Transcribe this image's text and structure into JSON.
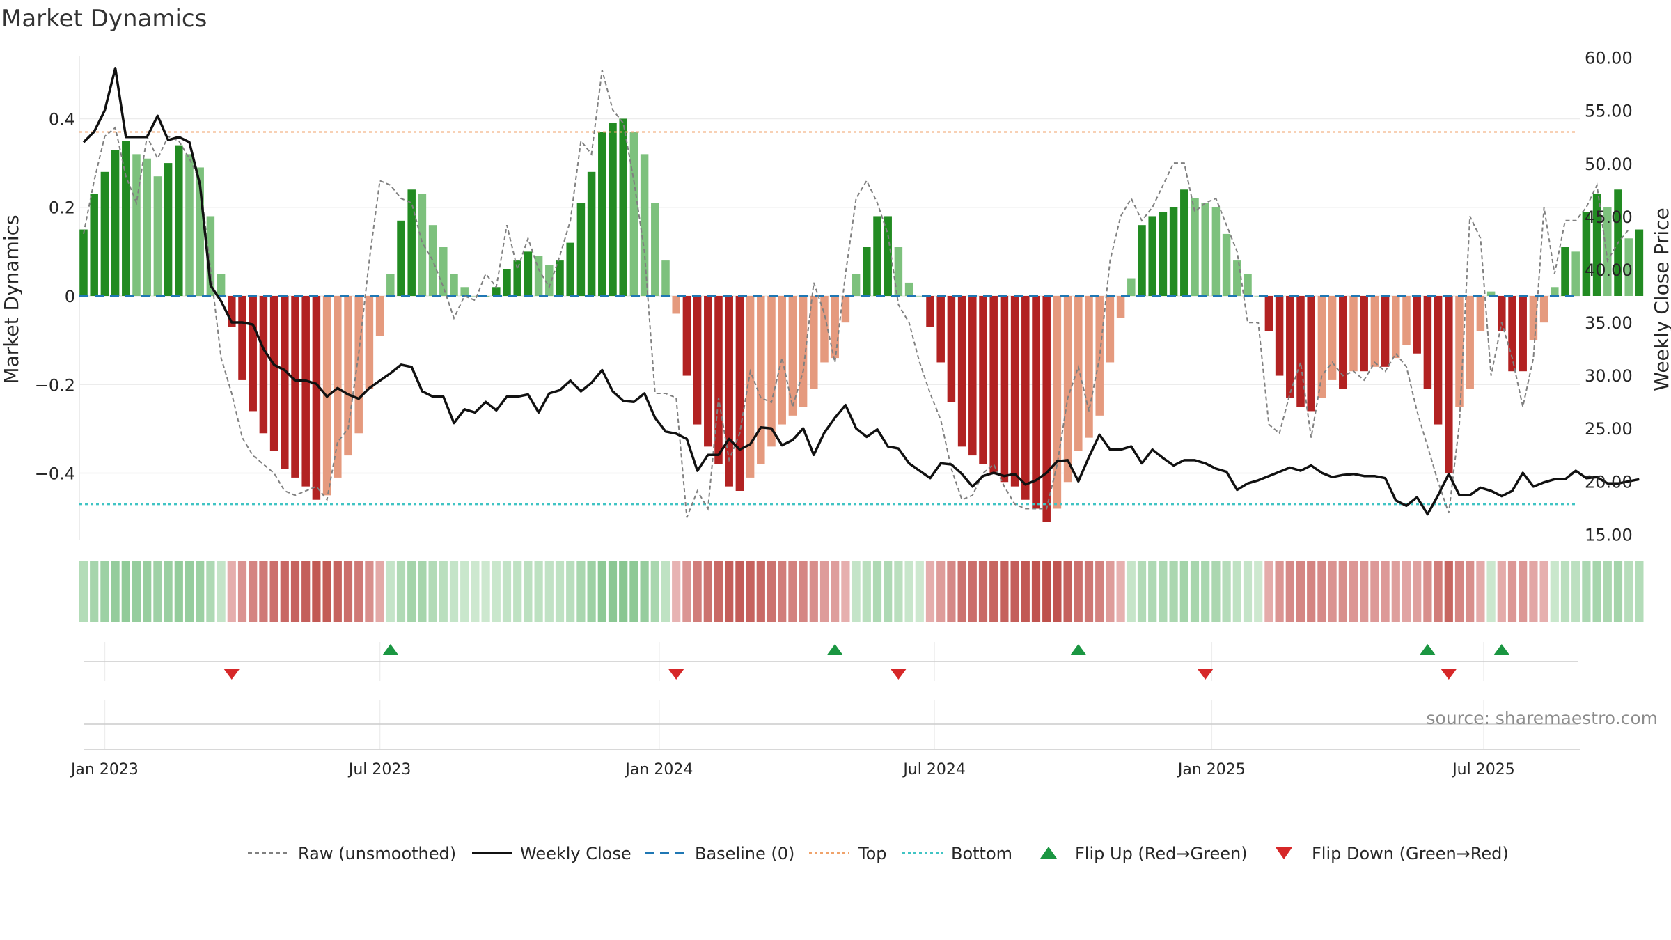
{
  "chart_data": {
    "type": "bar",
    "title": "Market Dynamics",
    "source": "source: sharemaestro.com",
    "left_axis": {
      "label": "Market Dynamics",
      "ylim": [
        -0.55,
        0.55
      ],
      "ticks": [
        0.4,
        0.2,
        0,
        -0.2,
        -0.4
      ],
      "tick_labels": [
        "0.4",
        "0.2",
        "0",
        "−0.2",
        "−0.4"
      ]
    },
    "right_axis": {
      "label": "Weekly Close Price",
      "ylim": [
        14.5,
        60.5
      ],
      "ticks": [
        60,
        55,
        50,
        45,
        40,
        35,
        30,
        25,
        20,
        15
      ],
      "tick_labels": [
        "60.00",
        "55.00",
        "50.00",
        "45.00",
        "40.00",
        "35.00",
        "30.00",
        "25.00",
        "20.00",
        "15.00"
      ]
    },
    "x_axis": {
      "tick_labels": [
        "Jan 2023",
        "Jul 2023",
        "Jan 2024",
        "Jul 2024",
        "Jan 2025",
        "Jul 2025"
      ],
      "tick_weeks": [
        2.0,
        28.0,
        54.4,
        80.4,
        106.6,
        132.3
      ]
    },
    "top_level": 0.37,
    "bottom_level": -0.47,
    "smoothed": [
      0.15,
      0.23,
      0.28,
      0.33,
      0.35,
      0.32,
      0.31,
      0.27,
      0.3,
      0.34,
      0.32,
      0.29,
      0.18,
      0.05,
      -0.07,
      -0.19,
      -0.26,
      -0.31,
      -0.35,
      -0.39,
      -0.41,
      -0.43,
      -0.46,
      -0.45,
      -0.41,
      -0.36,
      -0.31,
      -0.21,
      -0.09,
      0.05,
      0.17,
      0.24,
      0.23,
      0.16,
      0.11,
      0.05,
      0.02,
      0.0,
      0.0,
      0.02,
      0.06,
      0.08,
      0.1,
      0.09,
      0.07,
      0.08,
      0.12,
      0.21,
      0.28,
      0.37,
      0.39,
      0.4,
      0.37,
      0.32,
      0.21,
      0.08,
      -0.04,
      -0.18,
      -0.29,
      -0.34,
      -0.38,
      -0.43,
      -0.44,
      -0.41,
      -0.38,
      -0.34,
      -0.29,
      -0.27,
      -0.25,
      -0.21,
      -0.15,
      -0.14,
      -0.06,
      0.05,
      0.11,
      0.18,
      0.18,
      0.11,
      0.03,
      0.0,
      -0.07,
      -0.15,
      -0.24,
      -0.34,
      -0.36,
      -0.38,
      -0.4,
      -0.42,
      -0.43,
      -0.46,
      -0.48,
      -0.51,
      -0.48,
      -0.42,
      -0.35,
      -0.32,
      -0.27,
      -0.15,
      -0.05,
      0.04,
      0.16,
      0.18,
      0.19,
      0.2,
      0.24,
      0.22,
      0.21,
      0.2,
      0.14,
      0.08,
      0.05,
      0.0,
      -0.08,
      -0.18,
      -0.23,
      -0.25,
      -0.26,
      -0.23,
      -0.19,
      -0.21,
      -0.17,
      -0.17,
      -0.16,
      -0.16,
      -0.14,
      -0.11,
      -0.13,
      -0.21,
      -0.29,
      -0.4,
      -0.25,
      -0.21,
      -0.08,
      0.01,
      -0.08,
      -0.17,
      -0.17,
      -0.1,
      -0.06,
      0.02,
      0.11,
      0.1,
      0.19,
      0.23,
      0.2,
      0.24,
      0.13,
      0.15
    ],
    "raw": [
      0.14,
      0.26,
      0.36,
      0.38,
      0.27,
      0.21,
      0.36,
      0.31,
      0.36,
      0.35,
      0.31,
      0.26,
      0.06,
      -0.14,
      -0.22,
      -0.32,
      -0.36,
      -0.38,
      -0.4,
      -0.44,
      -0.45,
      -0.44,
      -0.43,
      -0.46,
      -0.33,
      -0.3,
      -0.13,
      0.08,
      0.26,
      0.25,
      0.22,
      0.21,
      0.12,
      0.08,
      0.02,
      -0.05,
      0.0,
      -0.01,
      0.05,
      0.02,
      0.16,
      0.06,
      0.13,
      0.06,
      0.02,
      0.09,
      0.17,
      0.35,
      0.32,
      0.51,
      0.42,
      0.39,
      0.26,
      0.1,
      -0.22,
      -0.22,
      -0.23,
      -0.5,
      -0.44,
      -0.48,
      -0.23,
      -0.37,
      -0.31,
      -0.17,
      -0.23,
      -0.24,
      -0.14,
      -0.25,
      -0.17,
      0.03,
      -0.04,
      -0.15,
      0.05,
      0.22,
      0.26,
      0.21,
      0.14,
      -0.02,
      -0.06,
      -0.15,
      -0.22,
      -0.28,
      -0.39,
      -0.46,
      -0.45,
      -0.4,
      -0.38,
      -0.43,
      -0.47,
      -0.48,
      -0.48,
      -0.48,
      -0.38,
      -0.23,
      -0.16,
      -0.26,
      -0.14,
      0.08,
      0.18,
      0.22,
      0.17,
      0.2,
      0.25,
      0.3,
      0.3,
      0.19,
      0.21,
      0.22,
      0.16,
      0.1,
      -0.06,
      -0.06,
      -0.29,
      -0.31,
      -0.22,
      -0.15,
      -0.32,
      -0.18,
      -0.15,
      -0.18,
      -0.17,
      -0.19,
      -0.15,
      -0.17,
      -0.13,
      -0.16,
      -0.26,
      -0.34,
      -0.42,
      -0.49,
      -0.29,
      0.18,
      0.13,
      -0.18,
      -0.06,
      -0.14,
      -0.25,
      -0.14,
      0.2,
      0.05,
      0.17,
      0.17,
      0.2,
      0.25,
      0.08,
      0.12,
      0.15
    ],
    "close": [
      52,
      53,
      55,
      59,
      52.5,
      52.5,
      52.5,
      54.5,
      52.2,
      52.5,
      52,
      48,
      38.5,
      37,
      35,
      35,
      34.8,
      32.5,
      31,
      30.5,
      29.5,
      29.5,
      29.2,
      28,
      28.8,
      28.2,
      27.8,
      28.8,
      29.5,
      30.2,
      31,
      30.8,
      28.5,
      28,
      28,
      25.5,
      26.8,
      26.5,
      27.5,
      26.7,
      28,
      28,
      28.2,
      26.5,
      28.3,
      28.6,
      29.5,
      28.5,
      29.3,
      30.5,
      28.5,
      27.6,
      27.5,
      28.3,
      26,
      24.7,
      24.5,
      24,
      21,
      22.5,
      22.5,
      24,
      23,
      23.5,
      25.1,
      25,
      23.4,
      23.9,
      25,
      22.5,
      24.6,
      26,
      27.2,
      25,
      24.2,
      24.9,
      23.3,
      23.1,
      21.7,
      21,
      20.3,
      21.7,
      21.6,
      20.7,
      19.5,
      20.5,
      20.8,
      20.5,
      20.7,
      19.7,
      20.1,
      20.8,
      21.9,
      22,
      20,
      22.3,
      24.4,
      23,
      23,
      23.3,
      21.7,
      23,
      22.2,
      21.5,
      22,
      22,
      21.7,
      21.2,
      20.9,
      19.2,
      19.8,
      20.1,
      20.5,
      20.9,
      21.3,
      21,
      21.5,
      20.8,
      20.4,
      20.6,
      20.7,
      20.5,
      20.5,
      20.3,
      18.2,
      17.7,
      18.5,
      16.9,
      18.7,
      20.7,
      18.7,
      18.7,
      19.4,
      19.1,
      18.6,
      19.1,
      20.8,
      19.5,
      19.9,
      20.2,
      20.2,
      21,
      20.3,
      20.4,
      19.8,
      19.8,
      20,
      20.2
    ],
    "flip_up_weeks": [
      29,
      71,
      94,
      127,
      134
    ],
    "flip_down_weeks": [
      14,
      56,
      77,
      106,
      129
    ],
    "colors": {
      "green_strong": "#228b22",
      "green_light": "#7dc17d",
      "red_strong": "#b22222",
      "red_light": "#e59a7e",
      "raw_line": "#808080",
      "close_line": "#111111",
      "baseline": "#1f77b4",
      "top_line": "#f0a36b",
      "bottom_line": "#40c4c4",
      "flip_up": "#1a9641",
      "flip_down": "#d62728"
    },
    "legend": [
      {
        "label": "Raw (unsmoothed)",
        "kind": "dash-gray"
      },
      {
        "label": "Weekly Close",
        "kind": "solid-black"
      },
      {
        "label": "Baseline (0)",
        "kind": "dash-blue"
      },
      {
        "label": "Top",
        "kind": "dot-orange"
      },
      {
        "label": "Bottom",
        "kind": "dot-cyan"
      },
      {
        "label": "Flip Up (Red→Green)",
        "kind": "tri-up"
      },
      {
        "label": "Flip Down (Green→Red)",
        "kind": "tri-down"
      }
    ]
  }
}
